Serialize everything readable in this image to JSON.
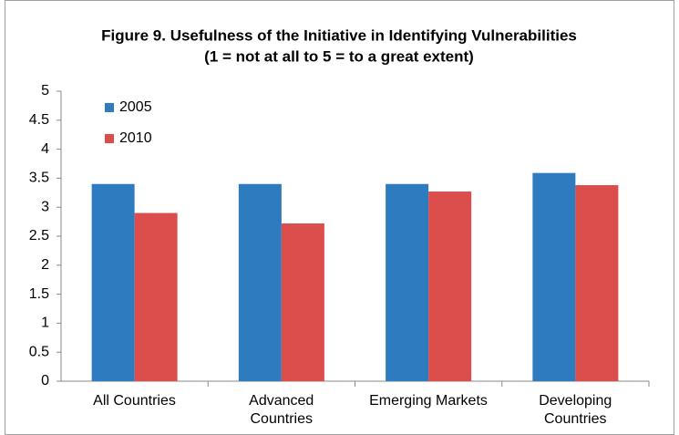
{
  "chart_data": {
    "type": "bar",
    "title": "Figure 9. Usefulness of the Initiative in Identifying Vulnerabilities",
    "subtitle": "(1 = not at all to 5 = to a great extent)",
    "categories": [
      "All Countries",
      "Advanced\nCountries",
      "Emerging Markets",
      "Developing\nCountries"
    ],
    "series": [
      {
        "name": "2005",
        "color": "#2e7bbf",
        "values": [
          3.4,
          3.4,
          3.4,
          3.59
        ]
      },
      {
        "name": "2010",
        "color": "#dc4e4c",
        "values": [
          2.9,
          2.72,
          3.27,
          3.38
        ]
      }
    ],
    "ylim": [
      0,
      5
    ],
    "yticks": [
      0,
      0.5,
      1,
      1.5,
      2,
      2.5,
      3,
      3.5,
      4,
      4.5,
      5
    ],
    "grid": false,
    "legend": "upper left"
  }
}
